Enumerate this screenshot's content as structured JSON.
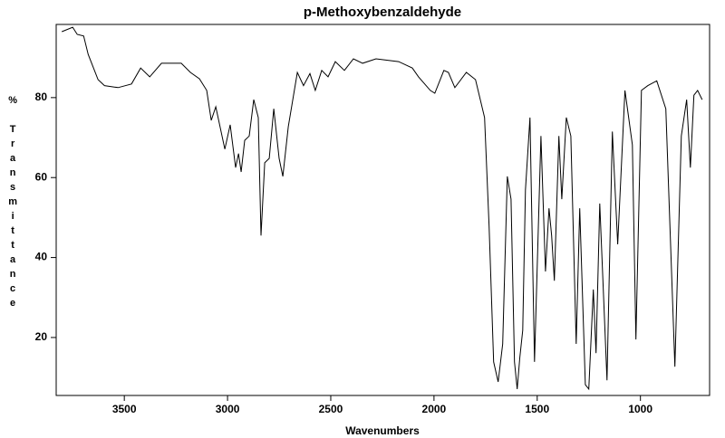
{
  "chart_data": {
    "type": "line",
    "title": "p-Methoxybenzaldehyde",
    "x_label": "Wavenumbers",
    "y_label": "% Transmittance",
    "xlim": [
      3830,
      665
    ],
    "ylim": [
      5.5,
      98.3
    ],
    "xticks": [
      3500,
      3000,
      2500,
      2000,
      1500,
      1000
    ],
    "yticks": [
      20,
      40,
      60,
      80
    ],
    "color": "#000000",
    "x": [
      3803,
      3750,
      3728,
      3697,
      3675,
      3649,
      3627,
      3596,
      3530,
      3465,
      3421,
      3377,
      3320,
      3224,
      3180,
      3136,
      3101,
      3079,
      3057,
      3013,
      2987,
      2961,
      2947,
      2934,
      2917,
      2895,
      2873,
      2851,
      2838,
      2820,
      2798,
      2776,
      2750,
      2732,
      2706,
      2662,
      2632,
      2601,
      2575,
      2544,
      2513,
      2478,
      2434,
      2390,
      2346,
      2281,
      2171,
      2105,
      2075,
      2018,
      1996,
      1952,
      1930,
      1899,
      1843,
      1799,
      1755,
      1733,
      1711,
      1689,
      1667,
      1645,
      1627,
      1610,
      1597,
      1584,
      1570,
      1557,
      1535,
      1513,
      1482,
      1460,
      1443,
      1430,
      1417,
      1395,
      1381,
      1359,
      1337,
      1311,
      1294,
      1267,
      1250,
      1228,
      1215,
      1197,
      1180,
      1162,
      1136,
      1110,
      1075,
      1039,
      1022,
      995,
      964,
      921,
      877,
      833,
      802,
      776,
      758,
      741,
      723,
      701
    ],
    "values": [
      96.5,
      97.6,
      95.8,
      95.4,
      90.8,
      87.4,
      84.5,
      83,
      82.5,
      83.4,
      87.4,
      85.2,
      88.6,
      88.6,
      86.3,
      84.7,
      81.8,
      74.3,
      77.7,
      67.1,
      73.2,
      62.5,
      66,
      61.4,
      69.3,
      70.4,
      79.5,
      75,
      45.5,
      63.7,
      64.8,
      77.2,
      64.8,
      60.3,
      72.7,
      86.3,
      83,
      86,
      81.8,
      86.8,
      85.2,
      89,
      86.8,
      89.7,
      88.6,
      89.7,
      89,
      87.4,
      85.2,
      81.8,
      81.1,
      86.8,
      86.3,
      82.5,
      86.3,
      84.5,
      75,
      47.8,
      13.9,
      8.9,
      18.4,
      60.3,
      54.6,
      13.9,
      7.1,
      15,
      21.8,
      56.9,
      75,
      13.9,
      70.4,
      36.5,
      52.3,
      45.5,
      34.2,
      70.4,
      54.6,
      75,
      70.4,
      18.4,
      52.3,
      8.2,
      7.1,
      32,
      16.1,
      53.5,
      32,
      9.3,
      71.5,
      43.3,
      81.8,
      68.2,
      19.5,
      81.8,
      83,
      84.2,
      77.2,
      12.7,
      70.4,
      79.5,
      62.5,
      80.6,
      81.8,
      79.5
    ]
  }
}
